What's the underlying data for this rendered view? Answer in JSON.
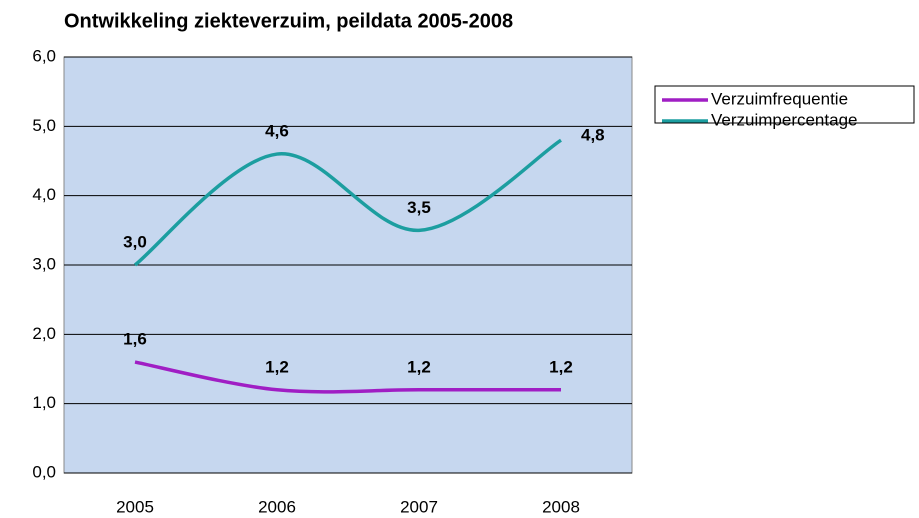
{
  "chart_data": {
    "type": "line",
    "title": "Ontwikkeling ziekteverzuim, peildata 2005-2008",
    "categories": [
      "2005",
      "2006",
      "2007",
      "2008"
    ],
    "series": [
      {
        "name": "Verzuimfrequentie",
        "color": "#a01ec4",
        "values": [
          1.6,
          1.2,
          1.2,
          1.2
        ],
        "value_labels": [
          "1,6",
          "1,2",
          "1,2",
          "1,2"
        ]
      },
      {
        "name": "Verzuimpercentage",
        "color": "#1c9ea0",
        "values": [
          3.0,
          4.6,
          3.5,
          4.8
        ],
        "value_labels": [
          "3,0",
          "4,6",
          "3,5",
          "4,8"
        ]
      }
    ],
    "ylim": [
      0,
      6
    ],
    "yticks": [
      {
        "value": 0,
        "label": "0,0"
      },
      {
        "value": 1,
        "label": "1,0"
      },
      {
        "value": 2,
        "label": "2,0"
      },
      {
        "value": 3,
        "label": "3,0"
      },
      {
        "value": 4,
        "label": "4,0"
      },
      {
        "value": 5,
        "label": "5,0"
      },
      {
        "value": 6,
        "label": "6,0"
      }
    ],
    "grid": true,
    "smooth": true,
    "legend": "right",
    "plot_background": "#c6d7ef"
  }
}
